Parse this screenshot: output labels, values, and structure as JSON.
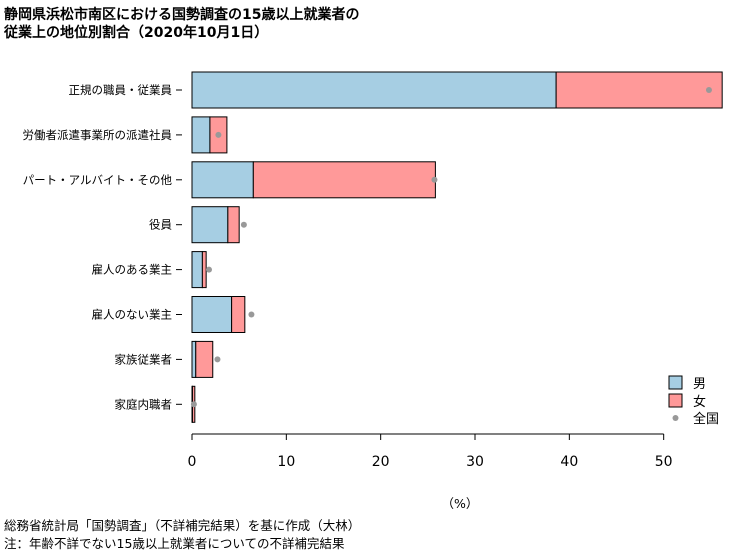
{
  "title_line1": "静岡県浜松市南区における国勢調査の15歳以上就業者の",
  "title_line2": "従業上の地位別割合（2020年10月1日）",
  "source": "総務省統計局「国勢調査」（不詳補完結果）を基に作成（大林）",
  "note": "注：年齢不詳でない15歳以上就業者についての不詳補完結果",
  "chart_data": {
    "type": "bar",
    "orientation": "horizontal",
    "stacked": true,
    "categories": [
      "正規の職員・従業員",
      "労働者派遣事業所の派遣社員",
      "パート・アルバイト・その他",
      "役員",
      "雇人のある業主",
      "雇人のない業主",
      "家族従業者",
      "家庭内職者"
    ],
    "series": [
      {
        "name": "男",
        "color": "#a6cee3",
        "values": [
          38.6,
          1.9,
          6.5,
          3.8,
          1.1,
          4.2,
          0.4,
          0.05
        ]
      },
      {
        "name": "女",
        "color": "#ff9999",
        "values": [
          17.6,
          1.8,
          19.3,
          1.2,
          0.4,
          1.4,
          1.8,
          0.25
        ]
      }
    ],
    "points": {
      "name": "全国",
      "color": "#999999",
      "values": [
        54.8,
        2.8,
        25.7,
        5.5,
        1.8,
        6.3,
        2.7,
        0.2
      ]
    },
    "x_ticks": [
      0,
      10,
      20,
      30,
      40,
      50
    ],
    "xlim": [
      0,
      56.5
    ],
    "xlabel": "（%）",
    "legend_position": "right-bottom"
  }
}
